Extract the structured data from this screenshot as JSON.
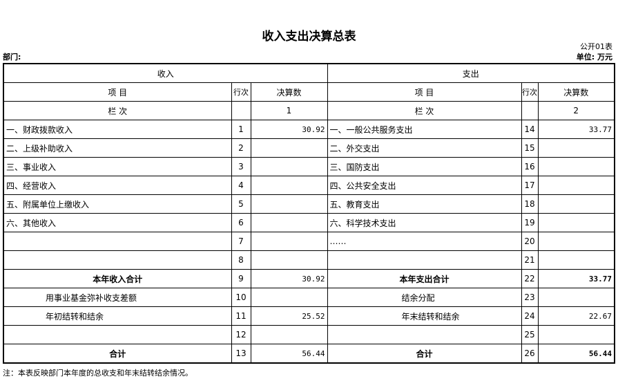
{
  "title": "收入支出决算总表",
  "table_code": "公开01表",
  "department_label": "部门:",
  "unit_label": "单位: 万元",
  "headers": {
    "income": "收入",
    "expense": "支出",
    "item": "项 目",
    "line": "行次",
    "amount": "决算数",
    "column": "栏 次",
    "income_col_no": "1",
    "expense_col_no": "2"
  },
  "rows": [
    {
      "in_item": "一、财政拨款收入",
      "in_line": "1",
      "in_amount": "30.92",
      "out_item": "一、一般公共服务支出",
      "out_line": "14",
      "out_amount": "33.77"
    },
    {
      "in_item": "二、上级补助收入",
      "in_line": "2",
      "in_amount": "",
      "out_item": "二、外交支出",
      "out_line": "15",
      "out_amount": ""
    },
    {
      "in_item": "三、事业收入",
      "in_line": "3",
      "in_amount": "",
      "out_item": "三、国防支出",
      "out_line": "16",
      "out_amount": ""
    },
    {
      "in_item": "四、经营收入",
      "in_line": "4",
      "in_amount": "",
      "out_item": "四、公共安全支出",
      "out_line": "17",
      "out_amount": ""
    },
    {
      "in_item": "五、附属单位上缴收入",
      "in_line": "5",
      "in_amount": "",
      "out_item": "五、教育支出",
      "out_line": "18",
      "out_amount": ""
    },
    {
      "in_item": "六、其他收入",
      "in_line": "6",
      "in_amount": "",
      "out_item": "六、科学技术支出",
      "out_line": "19",
      "out_amount": ""
    },
    {
      "in_item": "",
      "in_line": "7",
      "in_amount": "",
      "out_item": "……",
      "out_line": "20",
      "out_amount": ""
    },
    {
      "in_item": "",
      "in_line": "8",
      "in_amount": "",
      "out_item": "",
      "out_line": "21",
      "out_amount": ""
    },
    {
      "in_item": "本年收入合计",
      "in_line": "9",
      "in_amount": "30.92",
      "out_item": "本年支出合计",
      "out_line": "22",
      "out_amount": "33.77",
      "kind": "subtotal"
    },
    {
      "in_item": "用事业基金弥补收支差额",
      "in_line": "10",
      "in_amount": "",
      "out_item": "结余分配",
      "out_line": "23",
      "out_amount": "",
      "kind": "indent"
    },
    {
      "in_item": "年初结转和结余",
      "in_line": "11",
      "in_amount": "25.52",
      "out_item": "年末结转和结余",
      "out_line": "24",
      "out_amount": "22.67",
      "kind": "indent"
    },
    {
      "in_item": "",
      "in_line": "12",
      "in_amount": "",
      "out_item": "",
      "out_line": "25",
      "out_amount": ""
    },
    {
      "in_item": "合计",
      "in_line": "13",
      "in_amount": "56.44",
      "out_item": "合计",
      "out_line": "26",
      "out_amount": "56.44",
      "kind": "total"
    }
  ],
  "note": "注：本表反映部门本年度的总收支和年末结转结余情况。"
}
